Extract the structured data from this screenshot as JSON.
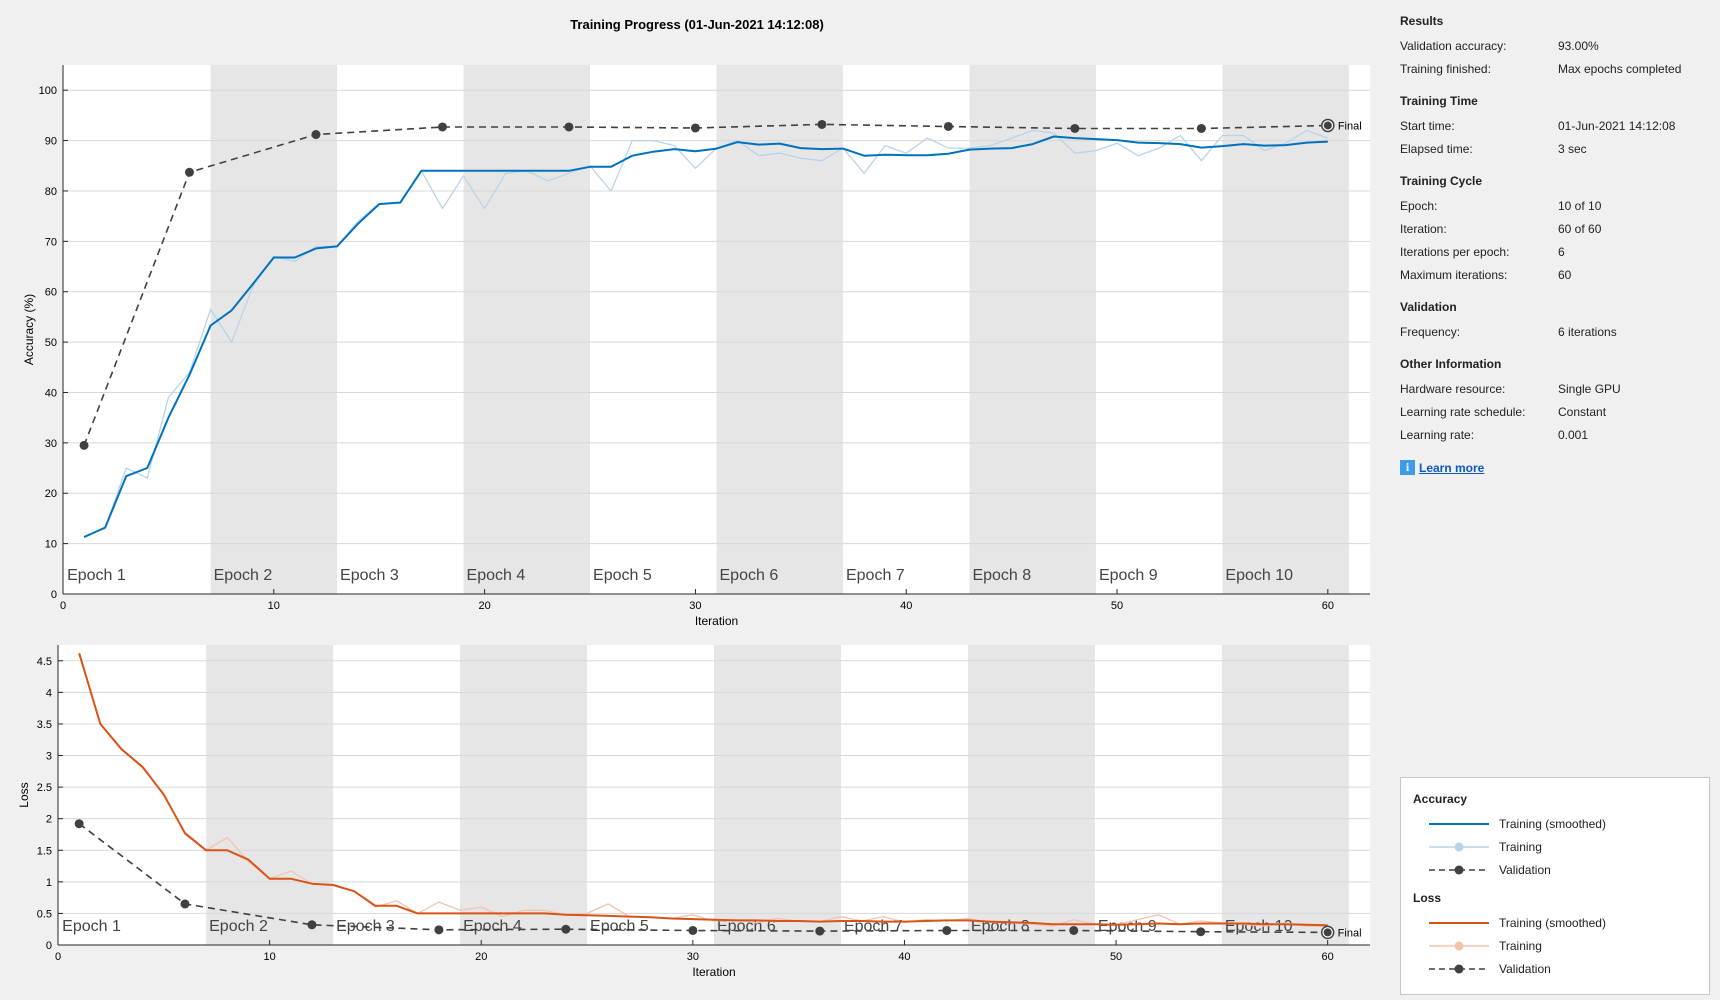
{
  "title": "Training Progress (01-Jun-2021 14:12:08)",
  "info": {
    "results": {
      "heading": "Results",
      "rows": [
        {
          "k": "Validation accuracy:",
          "v": "93.00%"
        },
        {
          "k": "Training finished:",
          "v": "Max epochs completed"
        }
      ]
    },
    "time": {
      "heading": "Training Time",
      "rows": [
        {
          "k": "Start time:",
          "v": "01-Jun-2021 14:12:08"
        },
        {
          "k": "Elapsed time:",
          "v": "3 sec"
        }
      ]
    },
    "cycle": {
      "heading": "Training Cycle",
      "rows": [
        {
          "k": "Epoch:",
          "v": "10 of 10"
        },
        {
          "k": "Iteration:",
          "v": "60 of 60"
        },
        {
          "k": "Iterations per epoch:",
          "v": "6"
        },
        {
          "k": "Maximum iterations:",
          "v": "60"
        }
      ]
    },
    "validation": {
      "heading": "Validation",
      "rows": [
        {
          "k": "Frequency:",
          "v": "6 iterations"
        }
      ]
    },
    "other": {
      "heading": "Other Information",
      "rows": [
        {
          "k": "Hardware resource:",
          "v": "Single GPU"
        },
        {
          "k": "Learning rate schedule:",
          "v": "Constant"
        },
        {
          "k": "Learning rate:",
          "v": "0.001"
        }
      ]
    },
    "learn_more": "Learn more",
    "info_icon": "info-icon"
  },
  "legend": {
    "accuracy_title": "Accuracy",
    "loss_title": "Loss",
    "smoothed": "Training (smoothed)",
    "training": "Training",
    "validation": "Validation"
  },
  "colors": {
    "acc_smoothed": "#0072bd",
    "acc_raw": "#b8d4ea",
    "loss_smoothed": "#d95319",
    "loss_raw": "#f3c4ac",
    "validation": "#404040",
    "epoch_band": "#e6e6e6"
  },
  "chart_data": [
    {
      "type": "line",
      "xlabel": "Iteration",
      "ylabel": "Accuracy (%)",
      "xlim": [
        0,
        62
      ],
      "ylim": [
        0,
        105
      ],
      "xticks": [
        0,
        10,
        20,
        30,
        40,
        50,
        60
      ],
      "yticks": [
        0,
        10,
        20,
        30,
        40,
        50,
        60,
        70,
        80,
        90,
        100
      ],
      "epoch_labels": [
        "Epoch 1",
        "Epoch 2",
        "Epoch 3",
        "Epoch 4",
        "Epoch 5",
        "Epoch 6",
        "Epoch 7",
        "Epoch 8",
        "Epoch 9",
        "Epoch 10"
      ],
      "final_label": "Final",
      "grid": true,
      "series": [
        {
          "name": "Training (smoothed)",
          "x": [
            1,
            2,
            3,
            4,
            5,
            6,
            7,
            8,
            9,
            10,
            11,
            12,
            13,
            14,
            15,
            16,
            17,
            18,
            19,
            20,
            21,
            22,
            23,
            24,
            25,
            26,
            27,
            28,
            29,
            30,
            31,
            32,
            33,
            34,
            35,
            36,
            37,
            38,
            39,
            40,
            41,
            42,
            43,
            44,
            45,
            46,
            47,
            48,
            49,
            50,
            51,
            52,
            53,
            54,
            55,
            56,
            57,
            58,
            59,
            60
          ],
          "y": [
            11.3,
            13.2,
            23.4,
            25,
            35,
            43.5,
            53.3,
            56.3,
            61.5,
            66.8,
            66.8,
            68.6,
            69,
            73.5,
            77.4,
            77.7,
            84,
            84,
            84,
            84,
            84,
            84,
            84,
            84,
            84.8,
            84.8,
            87,
            87.8,
            88.3,
            87.9,
            88.4,
            89.7,
            89.2,
            89.4,
            88.5,
            88.3,
            88.4,
            87,
            87.2,
            87.1,
            87.1,
            87.4,
            88.2,
            88.4,
            88.5,
            89.3,
            90.8,
            90.5,
            90.3,
            90.1,
            89.6,
            89.5,
            89.3,
            88.6,
            88.9,
            89.3,
            89,
            89.1,
            89.6,
            89.8
          ]
        },
        {
          "name": "Training",
          "x": [
            1,
            2,
            3,
            4,
            5,
            6,
            7,
            8,
            9,
            10,
            11,
            12,
            13,
            14,
            15,
            16,
            17,
            18,
            19,
            20,
            21,
            22,
            23,
            24,
            25,
            26,
            27,
            28,
            29,
            30,
            31,
            32,
            33,
            34,
            35,
            36,
            37,
            38,
            39,
            40,
            41,
            42,
            43,
            44,
            45,
            46,
            47,
            48,
            49,
            50,
            51,
            52,
            53,
            54,
            55,
            56,
            57,
            58,
            59,
            60
          ],
          "y": [
            11.5,
            13,
            25,
            23,
            39,
            44,
            56.5,
            50,
            61,
            67,
            66,
            69,
            69,
            74,
            77.5,
            77.5,
            84,
            76.5,
            83,
            76.5,
            83.5,
            84,
            82,
            83.5,
            85,
            80,
            90,
            90,
            89,
            84.5,
            88.5,
            90,
            87,
            87.5,
            86.5,
            86,
            88.5,
            83.5,
            89,
            87.5,
            90.5,
            88.5,
            88.5,
            89,
            90.5,
            92,
            91.5,
            87.5,
            88,
            89.5,
            87,
            88.5,
            91,
            86,
            91,
            91,
            88,
            89.5,
            92,
            90.5
          ]
        },
        {
          "name": "Validation",
          "x": [
            1,
            6,
            12,
            18,
            24,
            30,
            36,
            42,
            48,
            54,
            60
          ],
          "y": [
            29.5,
            83.7,
            91.2,
            92.7,
            92.7,
            92.5,
            93.2,
            92.8,
            92.4,
            92.4,
            93
          ]
        }
      ]
    },
    {
      "type": "line",
      "xlabel": "Iteration",
      "ylabel": "Loss",
      "xlim": [
        0,
        62
      ],
      "ylim": [
        0,
        4.75
      ],
      "xticks": [
        0,
        10,
        20,
        30,
        40,
        50,
        60
      ],
      "yticks": [
        0,
        0.5,
        1,
        1.5,
        2,
        2.5,
        3,
        3.5,
        4,
        4.5
      ],
      "epoch_labels": [
        "Epoch 1",
        "Epoch 2",
        "Epoch 3",
        "Epoch 4",
        "Epoch 5",
        "Epoch 6",
        "Epoch 7",
        "Epoch 8",
        "Epoch 9",
        "Epoch 10"
      ],
      "final_label": "Final",
      "grid": true,
      "series": [
        {
          "name": "Training (smoothed)",
          "x": [
            1,
            2,
            3,
            4,
            5,
            6,
            7,
            8,
            9,
            10,
            11,
            12,
            13,
            14,
            15,
            16,
            17,
            18,
            19,
            20,
            21,
            22,
            23,
            24,
            25,
            26,
            27,
            28,
            29,
            30,
            31,
            32,
            33,
            34,
            35,
            36,
            37,
            38,
            39,
            40,
            41,
            42,
            43,
            44,
            45,
            46,
            47,
            48,
            49,
            50,
            51,
            52,
            53,
            54,
            55,
            56,
            57,
            58,
            59,
            60
          ],
          "y": [
            4.62,
            3.5,
            3.1,
            2.82,
            2.38,
            1.77,
            1.5,
            1.5,
            1.35,
            1.05,
            1.05,
            0.97,
            0.95,
            0.85,
            0.62,
            0.62,
            0.5,
            0.5,
            0.5,
            0.5,
            0.5,
            0.5,
            0.5,
            0.48,
            0.47,
            0.46,
            0.45,
            0.44,
            0.42,
            0.41,
            0.4,
            0.39,
            0.39,
            0.38,
            0.38,
            0.37,
            0.38,
            0.38,
            0.37,
            0.37,
            0.38,
            0.39,
            0.39,
            0.37,
            0.36,
            0.35,
            0.33,
            0.33,
            0.33,
            0.32,
            0.33,
            0.34,
            0.33,
            0.34,
            0.34,
            0.34,
            0.33,
            0.33,
            0.32,
            0.31
          ]
        },
        {
          "name": "Training",
          "x": [
            1,
            2,
            3,
            4,
            5,
            6,
            7,
            8,
            9,
            10,
            11,
            12,
            13,
            14,
            15,
            16,
            17,
            18,
            19,
            20,
            21,
            22,
            23,
            24,
            25,
            26,
            27,
            28,
            29,
            30,
            31,
            32,
            33,
            34,
            35,
            36,
            37,
            38,
            39,
            40,
            41,
            42,
            43,
            44,
            45,
            46,
            47,
            48,
            49,
            50,
            51,
            52,
            53,
            54,
            55,
            56,
            57,
            58,
            59,
            60
          ],
          "y": [
            4.6,
            3.5,
            3.1,
            2.8,
            2.4,
            1.75,
            1.5,
            1.7,
            1.32,
            1.05,
            1.17,
            0.97,
            0.95,
            0.85,
            0.6,
            0.7,
            0.5,
            0.68,
            0.55,
            0.6,
            0.45,
            0.55,
            0.55,
            0.47,
            0.5,
            0.65,
            0.45,
            0.44,
            0.42,
            0.48,
            0.38,
            0.4,
            0.35,
            0.42,
            0.38,
            0.37,
            0.45,
            0.38,
            0.45,
            0.36,
            0.4,
            0.38,
            0.42,
            0.36,
            0.35,
            0.33,
            0.3,
            0.4,
            0.33,
            0.32,
            0.4,
            0.48,
            0.33,
            0.38,
            0.35,
            0.33,
            0.3,
            0.35,
            0.3,
            0.3
          ]
        },
        {
          "name": "Validation",
          "x": [
            1,
            6,
            12,
            18,
            24,
            30,
            36,
            42,
            48,
            54,
            60
          ],
          "y": [
            1.92,
            0.65,
            0.32,
            0.24,
            0.25,
            0.23,
            0.22,
            0.23,
            0.23,
            0.21,
            0.2
          ]
        }
      ]
    }
  ]
}
